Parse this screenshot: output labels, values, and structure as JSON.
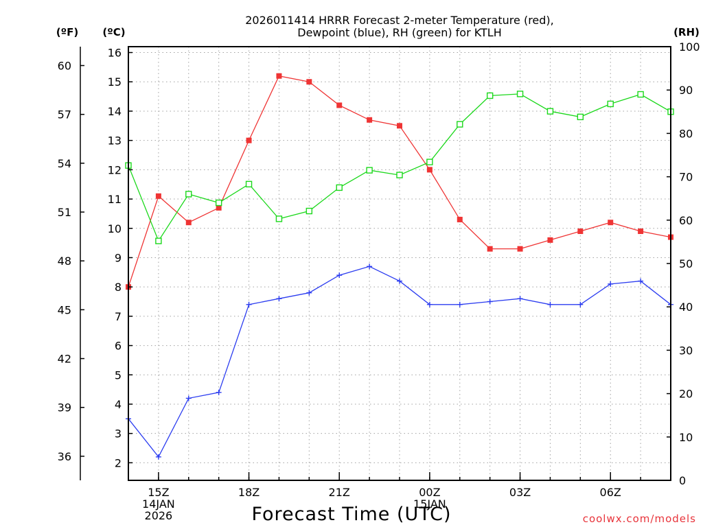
{
  "chart_data": {
    "type": "line",
    "title": [
      "2026011414 HRRR Forecast 2-meter Temperature (red),",
      "Dewpoint (blue), RH (green) for KTLH"
    ],
    "xlabel": "Forecast Time (UTC)",
    "watermark": "coolwx.com/models",
    "left_axis_label": "(ºC)",
    "far_left_axis_label": "(ºF)",
    "right_axis_label": "(RH)",
    "x_hours": [
      14,
      15,
      16,
      17,
      18,
      19,
      20,
      21,
      22,
      23,
      24,
      25,
      26,
      27,
      28,
      29,
      30,
      31,
      32
    ],
    "x_tick_labels": [
      {
        "hour": 15,
        "lines": [
          "15Z",
          "14JAN",
          "2026"
        ]
      },
      {
        "hour": 18,
        "lines": [
          "18Z"
        ]
      },
      {
        "hour": 21,
        "lines": [
          "21Z"
        ]
      },
      {
        "hour": 24,
        "lines": [
          "00Z",
          "15JAN"
        ]
      },
      {
        "hour": 27,
        "lines": [
          "03Z"
        ]
      },
      {
        "hour": 30,
        "lines": [
          "06Z"
        ]
      }
    ],
    "celsius_range": [
      1.4,
      16.2
    ],
    "celsius_ticks": [
      2,
      3,
      4,
      5,
      6,
      7,
      8,
      9,
      10,
      11,
      12,
      13,
      14,
      15,
      16
    ],
    "fahrenheit_ticks": [
      36,
      39,
      42,
      45,
      48,
      51,
      54,
      57,
      60
    ],
    "rh_range": [
      0,
      100
    ],
    "rh_ticks": [
      0,
      10,
      20,
      30,
      40,
      50,
      60,
      70,
      80,
      90,
      100
    ],
    "grid": true,
    "colors": {
      "temperature": "#ef3434",
      "dewpoint": "#2b3cf0",
      "rh": "#1bd81b",
      "grid": "#a0a0a0"
    },
    "series": [
      {
        "key": "temperature",
        "marker": "filled-square",
        "values": [
          8.0,
          11.1,
          10.2,
          10.7,
          13.0,
          15.2,
          15.0,
          14.2,
          13.7,
          13.5,
          12.0,
          10.3,
          9.3,
          9.3,
          9.6,
          9.9,
          10.2,
          9.9,
          9.7
        ]
      },
      {
        "key": "dewpoint",
        "marker": "plus",
        "values": [
          3.5,
          2.2,
          4.2,
          4.4,
          7.4,
          7.6,
          7.8,
          8.4,
          8.7,
          8.2,
          7.4,
          7.4,
          7.5,
          7.6,
          7.4,
          7.4,
          8.1,
          8.2,
          7.4
        ]
      },
      {
        "key": "rh",
        "marker": "open-square",
        "axis": "rh",
        "values": [
          72.6,
          55.2,
          66.0,
          64.0,
          68.3,
          60.3,
          62.1,
          67.5,
          71.5,
          70.4,
          73.4,
          82.1,
          88.7,
          89.1,
          85.1,
          83.8,
          86.8,
          89.0,
          85.0
        ]
      }
    ]
  }
}
